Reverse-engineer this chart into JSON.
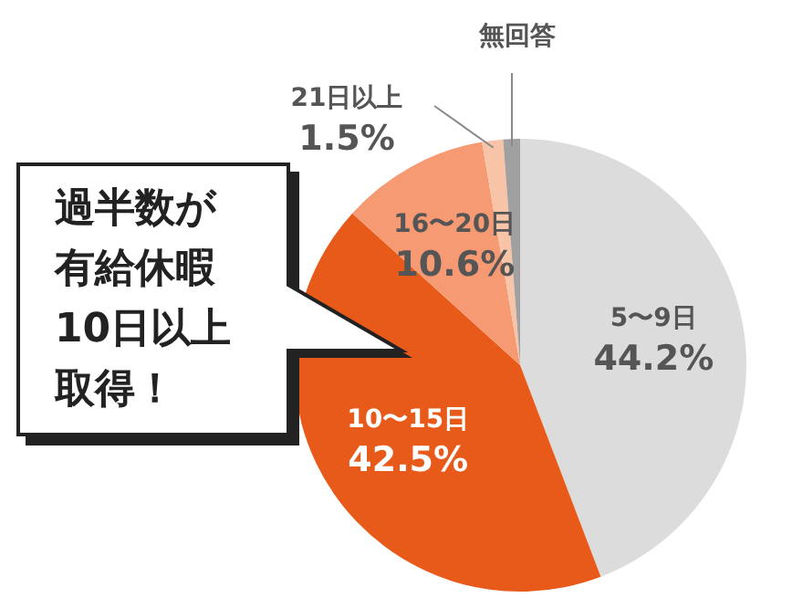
{
  "chart_data": {
    "type": "pie",
    "categories": [
      "5〜9日",
      "10〜15日",
      "16〜20日",
      "21日以上",
      "無回答"
    ],
    "values": [
      44.2,
      42.5,
      10.6,
      1.5,
      1.2
    ],
    "value_labels": [
      "44.2%",
      "42.5%",
      "10.6%",
      "1.5%",
      null
    ],
    "colors": [
      "#dcdcdc",
      "#e85a1a",
      "#f59a73",
      "#f8c4a8",
      "#a0a0a0"
    ],
    "legend": false,
    "annotations": [
      "過半数が有給休暇10日以上取得！"
    ]
  }
}
